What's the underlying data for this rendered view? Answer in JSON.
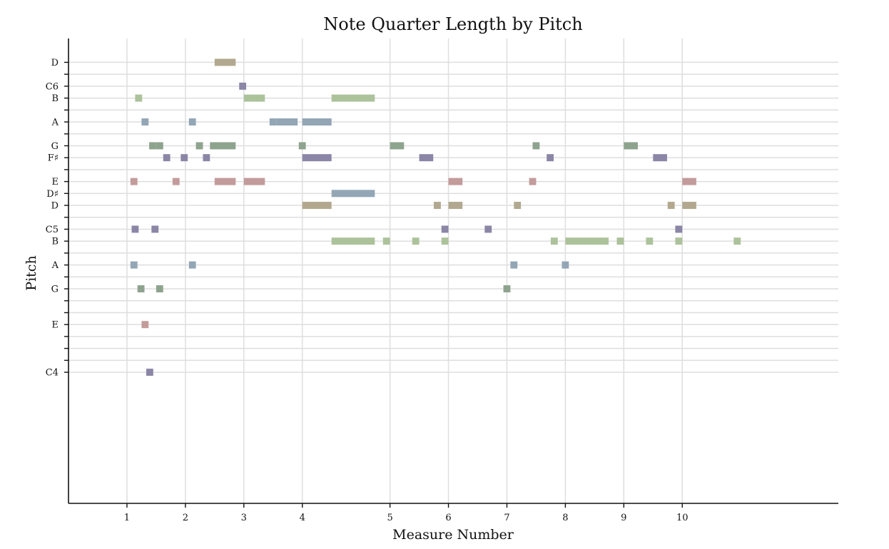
{
  "chart_data": {
    "type": "scatter",
    "title": "Note Quarter Length by Pitch",
    "xlabel": "Measure Number",
    "ylabel": "Pitch",
    "xlim": [
      0.0,
      13.17
    ],
    "ylim": [
      49,
      88
    ],
    "x_ticks": [
      {
        "label": "1",
        "value": 1
      },
      {
        "label": "2",
        "value": 2
      },
      {
        "label": "3",
        "value": 3
      },
      {
        "label": "4",
        "value": 4
      },
      {
        "label": "5",
        "value": 5.5
      },
      {
        "label": "6",
        "value": 6.5
      },
      {
        "label": "7",
        "value": 7.5
      },
      {
        "label": "8",
        "value": 8.5
      },
      {
        "label": "9",
        "value": 9.5
      },
      {
        "label": "10",
        "value": 10.5
      }
    ],
    "y_ticks": [
      {
        "label": "D",
        "value": 86
      },
      {
        "label": "",
        "value": 85
      },
      {
        "label": "C6",
        "value": 84
      },
      {
        "label": "B",
        "value": 83
      },
      {
        "label": "",
        "value": 82
      },
      {
        "label": "A",
        "value": 81
      },
      {
        "label": "",
        "value": 80
      },
      {
        "label": "G",
        "value": 79
      },
      {
        "label": "F♯",
        "value": 78
      },
      {
        "label": "",
        "value": 77
      },
      {
        "label": "E",
        "value": 76
      },
      {
        "label": "D♯",
        "value": 75
      },
      {
        "label": "D",
        "value": 74
      },
      {
        "label": "",
        "value": 73
      },
      {
        "label": "C5",
        "value": 72
      },
      {
        "label": "B",
        "value": 71
      },
      {
        "label": "",
        "value": 70
      },
      {
        "label": "A",
        "value": 69
      },
      {
        "label": "",
        "value": 68
      },
      {
        "label": "G",
        "value": 67
      },
      {
        "label": "",
        "value": 66
      },
      {
        "label": "",
        "value": 65
      },
      {
        "label": "E",
        "value": 64
      },
      {
        "label": "",
        "value": 63
      },
      {
        "label": "",
        "value": 62
      },
      {
        "label": "",
        "value": 61
      },
      {
        "label": "C4",
        "value": 60
      }
    ],
    "grid": true,
    "colors": {
      "C": "#8b86a6",
      "D": "#b1a88f",
      "E": "#c39b9b",
      "G": "#8ea38e",
      "A": "#93a6b6",
      "B": "#acc29b"
    },
    "series": [
      {
        "color_key": "D",
        "notes": [
          [
            2.5,
            86,
            0.36
          ],
          [
            4,
            74,
            0.5
          ],
          [
            6.25,
            74,
            0.12
          ],
          [
            6.5,
            74,
            0.24
          ],
          [
            7.62,
            74,
            0.12
          ],
          [
            10.25,
            74,
            0.12
          ],
          [
            10.5,
            74,
            0.24
          ]
        ]
      },
      {
        "color_key": "C",
        "notes": [
          [
            2.92,
            84,
            0.12
          ],
          [
            1.08,
            72,
            0.12
          ],
          [
            1.42,
            72,
            0.12
          ],
          [
            6.38,
            72,
            0.12
          ],
          [
            7.12,
            72,
            0.12
          ],
          [
            10.38,
            72,
            0.12
          ],
          [
            1.33,
            60,
            0.12
          ]
        ]
      },
      {
        "color_key": "B",
        "notes": [
          [
            1.14,
            83,
            0.12
          ],
          [
            3,
            83,
            0.36
          ],
          [
            4.5,
            83,
            0.74
          ],
          [
            4.5,
            71,
            0.74
          ],
          [
            5.38,
            71,
            0.12
          ],
          [
            5.88,
            71,
            0.12
          ],
          [
            6.38,
            71,
            0.12
          ],
          [
            8.25,
            71,
            0.12
          ],
          [
            8.5,
            71,
            0.74
          ],
          [
            9.38,
            71,
            0.12
          ],
          [
            9.88,
            71,
            0.12
          ],
          [
            10.38,
            71,
            0.12
          ],
          [
            11.38,
            71,
            0.12
          ]
        ]
      },
      {
        "color_key": "A",
        "notes": [
          [
            1.25,
            81,
            0.12
          ],
          [
            2.06,
            81,
            0.12
          ],
          [
            3.44,
            81,
            0.12
          ],
          [
            3.56,
            81,
            0.36
          ],
          [
            4,
            81,
            0.5
          ],
          [
            4.5,
            75,
            0.74
          ],
          [
            1.06,
            69,
            0.12
          ],
          [
            2.06,
            69,
            0.12
          ],
          [
            7.56,
            69,
            0.12
          ],
          [
            8.44,
            69,
            0.12
          ]
        ]
      },
      {
        "color_key": "G",
        "notes": [
          [
            1.38,
            79,
            0.12
          ],
          [
            1.5,
            79,
            0.12
          ],
          [
            2.18,
            79,
            0.12
          ],
          [
            2.42,
            79,
            0.12
          ],
          [
            2.5,
            79,
            0.36
          ],
          [
            3.94,
            79,
            0.12
          ],
          [
            5.5,
            79,
            0.24
          ],
          [
            7.94,
            79,
            0.12
          ],
          [
            9.5,
            79,
            0.24
          ],
          [
            1.18,
            67,
            0.12
          ],
          [
            1.5,
            67,
            0.12
          ],
          [
            7.44,
            67,
            0.12
          ]
        ]
      },
      {
        "color_key": "C",
        "notes": [
          [
            1.62,
            78,
            0.12
          ],
          [
            1.92,
            78,
            0.12
          ],
          [
            2.3,
            78,
            0.12
          ],
          [
            4,
            78,
            0.5
          ],
          [
            6,
            78,
            0.24
          ],
          [
            8.18,
            78,
            0.12
          ],
          [
            10,
            78,
            0.24
          ]
        ]
      },
      {
        "color_key": "E",
        "notes": [
          [
            1.06,
            76,
            0.12
          ],
          [
            1.78,
            76,
            0.12
          ],
          [
            2.5,
            76,
            0.36
          ],
          [
            3,
            76,
            0.36
          ],
          [
            6.5,
            76,
            0.24
          ],
          [
            7.88,
            76,
            0.12
          ],
          [
            10.5,
            76,
            0.24
          ],
          [
            1.25,
            64,
            0.12
          ]
        ]
      }
    ]
  }
}
